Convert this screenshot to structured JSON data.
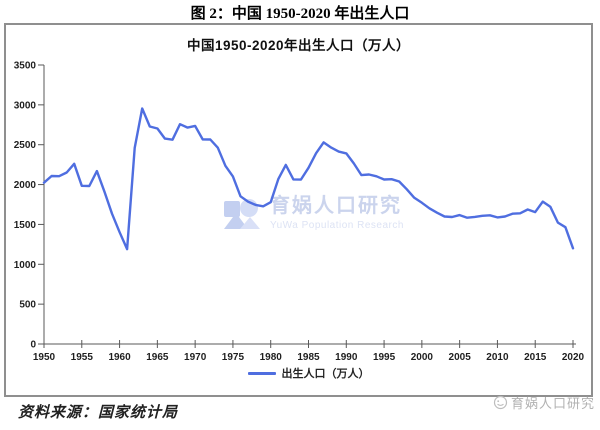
{
  "figure": {
    "title": "图 2：中国 1950-2020 年出生人口",
    "source": "资料来源：国家统计局"
  },
  "chart": {
    "title": "中国1950-2020年出生人口（万人）",
    "legend_label": "出生人口（万人）",
    "line_color": "#4f6ee0",
    "axis_color": "#595959",
    "tick_label_color": "#1f1f1f"
  },
  "watermark": {
    "main": "育娲人口研究",
    "sub": "YuWa Population Research",
    "corner": "育娲人口研究"
  },
  "chart_data": {
    "type": "line",
    "title": "中国1950-2020年出生人口（万人）",
    "xlabel": "",
    "ylabel": "",
    "xlim": [
      1950,
      2020
    ],
    "ylim": [
      0,
      3500
    ],
    "x_ticks": [
      1950,
      1955,
      1960,
      1965,
      1970,
      1975,
      1980,
      1985,
      1990,
      1995,
      2000,
      2005,
      2010,
      2015,
      2020
    ],
    "y_ticks": [
      0,
      500,
      1000,
      1500,
      2000,
      2500,
      3000,
      3500
    ],
    "grid": false,
    "legend_position": "bottom",
    "series": [
      {
        "name": "出生人口（万人）",
        "x": [
          1950,
          1951,
          1952,
          1953,
          1954,
          1955,
          1956,
          1957,
          1958,
          1959,
          1960,
          1961,
          1962,
          1963,
          1964,
          1965,
          1966,
          1967,
          1968,
          1969,
          1970,
          1971,
          1972,
          1973,
          1974,
          1975,
          1976,
          1977,
          1978,
          1979,
          1980,
          1981,
          1982,
          1983,
          1984,
          1985,
          1986,
          1987,
          1988,
          1989,
          1990,
          1991,
          1992,
          1993,
          1994,
          1995,
          1996,
          1997,
          1998,
          1999,
          2000,
          2001,
          2002,
          2003,
          2004,
          2005,
          2006,
          2007,
          2008,
          2009,
          2010,
          2011,
          2012,
          2013,
          2014,
          2015,
          2016,
          2017,
          2018,
          2019,
          2020
        ],
        "values": [
          2023,
          2107,
          2105,
          2151,
          2260,
          1984,
          1982,
          2169,
          1909,
          1635,
          1402,
          1190,
          2460,
          2954,
          2729,
          2704,
          2577,
          2563,
          2757,
          2715,
          2736,
          2567,
          2566,
          2463,
          2235,
          2102,
          1853,
          1787,
          1745,
          1727,
          1779,
          2069,
          2247,
          2065,
          2062,
          2211,
          2393,
          2529,
          2464,
          2414,
          2391,
          2265,
          2119,
          2126,
          2104,
          2063,
          2067,
          2038,
          1942,
          1834,
          1771,
          1702,
          1647,
          1599,
          1593,
          1617,
          1585,
          1595,
          1608,
          1615,
          1588,
          1600,
          1635,
          1640,
          1687,
          1655,
          1786,
          1723,
          1523,
          1465,
          1200
        ]
      }
    ]
  }
}
